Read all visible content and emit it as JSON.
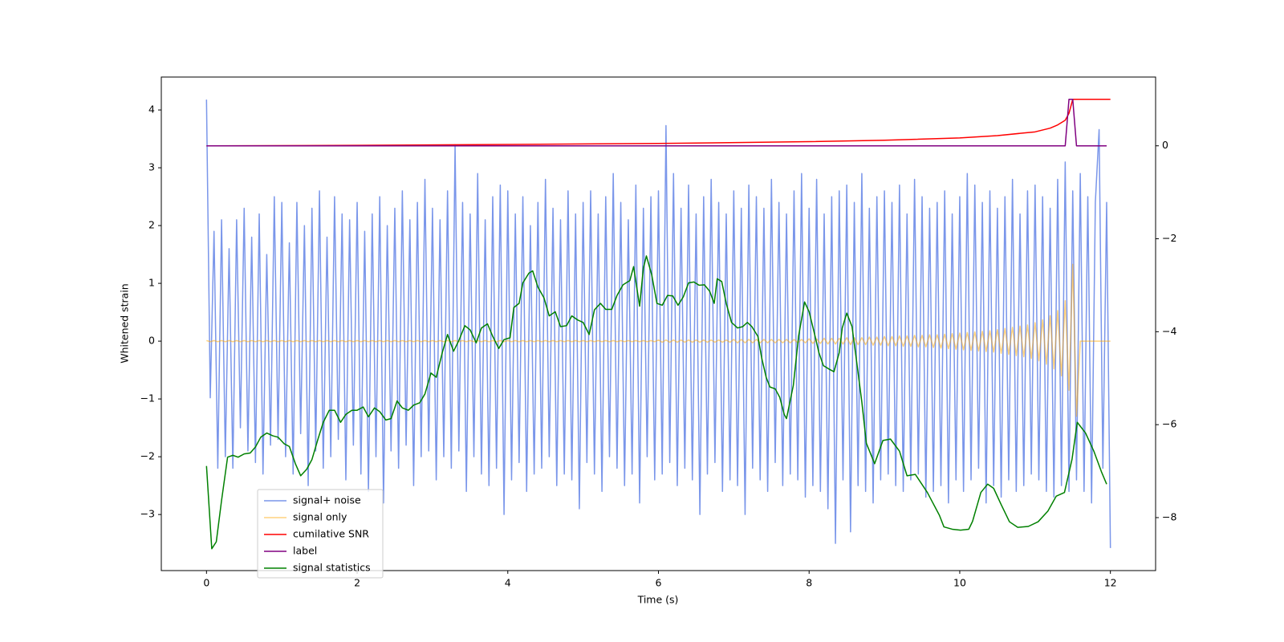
{
  "chart_data": {
    "type": "line",
    "xlabel": "Time (s)",
    "ylabel": "Whitened strain",
    "xlim": [
      -0.6,
      12.6
    ],
    "ylim": [
      -3.97,
      4.57
    ],
    "y2lim": [
      -9.14,
      1.48
    ],
    "xticks": [
      0,
      2,
      4,
      6,
      8,
      10,
      12
    ],
    "yticks": [
      {
        "value": -3,
        "label": "−3"
      },
      {
        "value": -2,
        "label": "−2"
      },
      {
        "value": -1,
        "label": "−1"
      },
      0,
      1,
      2,
      3,
      4
    ],
    "y2ticks": [
      {
        "value": -8,
        "label": "−8"
      },
      {
        "value": -6,
        "label": "−6"
      },
      {
        "value": -4,
        "label": "−4"
      },
      {
        "value": -2,
        "label": "−2"
      },
      0
    ],
    "x": [
      0,
      0.05,
      0.1,
      0.15,
      0.2,
      0.25,
      0.3,
      0.35,
      0.4,
      0.45,
      0.5,
      0.55,
      0.6,
      0.65,
      0.7,
      0.75,
      0.8,
      0.85,
      0.9,
      0.95,
      1,
      1.05,
      1.1,
      1.15,
      1.2,
      1.25,
      1.3,
      1.35,
      1.4,
      1.45,
      1.5,
      1.55,
      1.6,
      1.65,
      1.7,
      1.75,
      1.8,
      1.85,
      1.9,
      1.95,
      2,
      2.05,
      2.1,
      2.15,
      2.2,
      2.25,
      2.3,
      2.35,
      2.4,
      2.45,
      2.5,
      2.55,
      2.6,
      2.65,
      2.7,
      2.75,
      2.8,
      2.85,
      2.9,
      2.95,
      3,
      3.05,
      3.1,
      3.15,
      3.2,
      3.25,
      3.3,
      3.35,
      3.4,
      3.45,
      3.5,
      3.55,
      3.6,
      3.65,
      3.7,
      3.75,
      3.8,
      3.85,
      3.9,
      3.95,
      4,
      4.05,
      4.1,
      4.15,
      4.2,
      4.25,
      4.3,
      4.35,
      4.4,
      4.45,
      4.5,
      4.55,
      4.6,
      4.65,
      4.7,
      4.75,
      4.8,
      4.85,
      4.9,
      4.95,
      5,
      5.05,
      5.1,
      5.15,
      5.2,
      5.25,
      5.3,
      5.35,
      5.4,
      5.45,
      5.5,
      5.55,
      5.6,
      5.65,
      5.7,
      5.75,
      5.8,
      5.85,
      5.9,
      5.95,
      6,
      6.05,
      6.1,
      6.15,
      6.2,
      6.25,
      6.3,
      6.35,
      6.4,
      6.45,
      6.5,
      6.55,
      6.6,
      6.65,
      6.7,
      6.75,
      6.8,
      6.85,
      6.9,
      6.95,
      7,
      7.05,
      7.1,
      7.15,
      7.2,
      7.25,
      7.3,
      7.35,
      7.4,
      7.45,
      7.5,
      7.55,
      7.6,
      7.65,
      7.7,
      7.75,
      7.8,
      7.85,
      7.9,
      7.95,
      8,
      8.05,
      8.1,
      8.15,
      8.2,
      8.25,
      8.3,
      8.35,
      8.4,
      8.45,
      8.5,
      8.55,
      8.6,
      8.65,
      8.7,
      8.75,
      8.8,
      8.85,
      8.9,
      8.95,
      9,
      9.05,
      9.1,
      9.15,
      9.2,
      9.25,
      9.3,
      9.35,
      9.4,
      9.45,
      9.5,
      9.55,
      9.6,
      9.65,
      9.7,
      9.75,
      9.8,
      9.85,
      9.9,
      9.95,
      10,
      10.05,
      10.1,
      10.15,
      10.2,
      10.25,
      10.3,
      10.35,
      10.4,
      10.45,
      10.5,
      10.55,
      10.6,
      10.65,
      10.7,
      10.75,
      10.8,
      10.85,
      10.9,
      10.95,
      11,
      11.05,
      11.1,
      11.15,
      11.2,
      11.25,
      11.3,
      11.35,
      11.4,
      11.45,
      11.5,
      11.55,
      11.6,
      11.65,
      11.7,
      11.75,
      11.8,
      11.85,
      11.9,
      11.95,
      12
    ],
    "series": [
      {
        "name": "signal+ noise",
        "color": "royalblue",
        "alpha": 0.7,
        "values": [
          4.18,
          -0.98,
          1.9,
          -2.2,
          2.1,
          -2.0,
          1.6,
          -2.2,
          2.1,
          -1.5,
          2.3,
          -1.9,
          1.8,
          -2.1,
          2.2,
          -2.3,
          1.5,
          -1.8,
          2.5,
          -1.7,
          2.4,
          -2.0,
          1.7,
          -2.3,
          2.4,
          -1.6,
          2.0,
          -2.5,
          2.3,
          -1.9,
          2.6,
          -2.2,
          1.8,
          -2.0,
          2.5,
          -1.7,
          2.2,
          -2.4,
          2.1,
          -1.8,
          2.4,
          -2.3,
          1.9,
          -2.6,
          2.2,
          -2.0,
          2.5,
          -2.8,
          2.0,
          -1.9,
          2.3,
          -2.2,
          2.6,
          -1.8,
          2.1,
          -2.5,
          2.4,
          -2.0,
          2.8,
          -1.9,
          2.3,
          -2.4,
          2.1,
          -2.0,
          2.6,
          -2.2,
          3.4,
          -1.9,
          2.4,
          -2.6,
          2.2,
          -2.0,
          2.9,
          -2.3,
          2.1,
          -2.5,
          2.5,
          -2.2,
          2.7,
          -3.0,
          2.6,
          -2.4,
          2.2,
          -2.1,
          2.5,
          -2.6,
          2.0,
          -2.3,
          2.4,
          -2.2,
          2.8,
          -2.0,
          2.3,
          -2.5,
          2.1,
          -2.3,
          2.6,
          -2.4,
          2.2,
          -2.9,
          2.4,
          -2.1,
          2.6,
          -2.3,
          2.2,
          -2.6,
          2.5,
          -2.0,
          2.9,
          -2.2,
          2.4,
          -2.5,
          2.1,
          -2.3,
          2.7,
          -2.8,
          2.3,
          -2.0,
          2.5,
          -2.4,
          2.6,
          -2.3,
          3.73,
          -2.1,
          2.9,
          -2.5,
          2.3,
          -2.2,
          2.7,
          -2.4,
          2.2,
          -3.0,
          2.5,
          -2.3,
          2.8,
          -2.1,
          2.4,
          -2.6,
          2.2,
          -2.4,
          2.6,
          -2.5,
          2.3,
          -3.0,
          2.7,
          -2.2,
          2.5,
          -2.4,
          2.3,
          -2.6,
          2.8,
          -2.1,
          2.4,
          -2.5,
          2.2,
          -2.3,
          2.6,
          -2.4,
          2.9,
          -2.7,
          2.3,
          -2.5,
          2.8,
          -2.6,
          2.2,
          -2.9,
          2.5,
          -3.5,
          2.6,
          -2.4,
          2.7,
          -3.3,
          2.4,
          -2.5,
          2.9,
          -2.6,
          2.3,
          -2.8,
          2.5,
          -2.4,
          2.6,
          -2.3,
          2.4,
          -2.5,
          2.7,
          -2.6,
          2.2,
          -2.4,
          2.8,
          -2.3,
          2.5,
          -2.7,
          2.3,
          -2.6,
          2.4,
          -2.5,
          2.6,
          -2.8,
          2.2,
          -2.4,
          2.5,
          -2.6,
          2.9,
          -2.4,
          2.7,
          -2.2,
          2.4,
          -2.8,
          2.6,
          -2.5,
          2.3,
          -2.7,
          2.5,
          -2.4,
          2.8,
          -2.6,
          2.2,
          -2.5,
          2.6,
          -2.3,
          2.7,
          -2.4,
          2.5,
          -2.6,
          2.3,
          -2.7,
          2.8,
          -2.5,
          3.1,
          -2.6,
          2.6,
          -2.4,
          2.9,
          -2.6,
          2.5,
          -2.8,
          2.4,
          3.66,
          -2.2,
          2.4,
          -3.58
        ]
      },
      {
        "name": "signal only",
        "color": "orange",
        "alpha": 0.5,
        "values": [
          0.01,
          -0.01,
          0.01,
          -0.01,
          0.01,
          -0.01,
          0.01,
          -0.01,
          0.01,
          -0.01,
          0.01,
          -0.01,
          0.01,
          -0.01,
          0.01,
          -0.01,
          0.01,
          -0.01,
          0.01,
          -0.01,
          0.01,
          -0.01,
          0.01,
          -0.01,
          0.01,
          -0.01,
          0.01,
          -0.01,
          0.01,
          -0.01,
          0.01,
          -0.01,
          0.01,
          -0.01,
          0.01,
          -0.01,
          0.01,
          -0.01,
          0.01,
          -0.01,
          0.01,
          -0.01,
          0.01,
          -0.01,
          0.01,
          -0.01,
          0.01,
          -0.01,
          0.01,
          -0.01,
          0.01,
          -0.01,
          0.01,
          -0.01,
          0.01,
          -0.01,
          0.01,
          -0.01,
          0.01,
          -0.01,
          0.01,
          -0.01,
          0.01,
          -0.01,
          0.01,
          -0.01,
          0.01,
          -0.01,
          0.01,
          -0.01,
          0.01,
          -0.01,
          0.01,
          -0.01,
          0.01,
          -0.01,
          0.01,
          -0.01,
          0.01,
          -0.01,
          0.01,
          -0.01,
          0.01,
          -0.01,
          0.01,
          -0.01,
          0.01,
          -0.01,
          0.01,
          -0.01,
          0.01,
          -0.01,
          0.01,
          -0.01,
          0.01,
          -0.01,
          0.01,
          -0.01,
          0.01,
          -0.01,
          0.01,
          -0.01,
          0.01,
          -0.01,
          0.01,
          -0.01,
          0.01,
          -0.01,
          0.01,
          -0.01,
          0.01,
          -0.01,
          0.01,
          -0.01,
          0.01,
          -0.01,
          0.01,
          -0.01,
          0.01,
          -0.01,
          0.02,
          -0.02,
          0.02,
          -0.02,
          0.02,
          -0.02,
          0.02,
          -0.02,
          0.02,
          -0.02,
          0.02,
          -0.02,
          0.02,
          -0.02,
          0.02,
          -0.02,
          0.02,
          -0.02,
          0.02,
          -0.02,
          0.03,
          -0.03,
          0.03,
          -0.03,
          0.03,
          -0.03,
          0.03,
          -0.03,
          0.03,
          -0.03,
          0.03,
          -0.03,
          0.03,
          -0.03,
          0.03,
          -0.03,
          0.03,
          -0.03,
          0.03,
          -0.03,
          0.04,
          -0.04,
          0.04,
          -0.04,
          0.05,
          -0.05,
          0.05,
          -0.05,
          0.05,
          -0.05,
          0.06,
          -0.06,
          0.06,
          -0.06,
          0.06,
          -0.06,
          0.07,
          -0.07,
          0.07,
          -0.07,
          0.08,
          -0.08,
          0.08,
          -0.08,
          0.09,
          -0.09,
          0.09,
          -0.09,
          0.1,
          -0.1,
          0.1,
          -0.1,
          0.11,
          -0.11,
          0.11,
          -0.12,
          0.12,
          -0.13,
          0.13,
          -0.14,
          0.14,
          -0.15,
          0.15,
          -0.16,
          0.16,
          -0.17,
          0.17,
          -0.18,
          0.18,
          -0.19,
          0.2,
          -0.21,
          0.22,
          -0.23,
          0.24,
          -0.25,
          0.26,
          -0.27,
          0.28,
          -0.3,
          0.32,
          -0.34,
          0.37,
          -0.4,
          0.44,
          -0.48,
          0.53,
          -0.6,
          0.7,
          -0.85,
          1.33,
          -1.3,
          0,
          0,
          0,
          0,
          0,
          0,
          0,
          0,
          0
        ]
      },
      {
        "name": "cumilative SNR",
        "color": "red",
        "axis": "y2",
        "x": [
          0,
          2,
          4,
          6,
          8,
          9,
          10,
          10.5,
          11,
          11.2,
          11.3,
          11.4,
          11.45,
          11.5,
          12
        ],
        "values": [
          0,
          0.01,
          0.03,
          0.05,
          0.09,
          0.12,
          0.17,
          0.22,
          0.3,
          0.38,
          0.45,
          0.55,
          0.7,
          1,
          1
        ]
      },
      {
        "name": "label",
        "color": "purple",
        "axis": "y2",
        "x": [
          0,
          11.4,
          11.45,
          11.5,
          11.55,
          11.95
        ],
        "values": [
          0,
          0,
          1,
          1,
          0,
          0
        ]
      },
      {
        "name": "signal statistics",
        "color": "green",
        "axis": "y2",
        "x": [
          0,
          0.07,
          0.13,
          0.2,
          0.28,
          0.35,
          0.42,
          0.5,
          0.58,
          0.65,
          0.72,
          0.8,
          0.88,
          0.95,
          1.03,
          1.1,
          1.18,
          1.25,
          1.33,
          1.4,
          1.48,
          1.55,
          1.63,
          1.7,
          1.78,
          1.85,
          1.93,
          2,
          2.08,
          2.15,
          2.23,
          2.3,
          2.38,
          2.45,
          2.53,
          2.6,
          2.68,
          2.75,
          2.83,
          2.9,
          2.98,
          3.05,
          3.13,
          3.2,
          3.28,
          3.35,
          3.43,
          3.5,
          3.58,
          3.65,
          3.73,
          3.8,
          3.88,
          3.95,
          4.03,
          4.08,
          4.15,
          4.2,
          4.28,
          4.33,
          4.4,
          4.48,
          4.55,
          4.63,
          4.7,
          4.78,
          4.85,
          4.93,
          5,
          5.08,
          5.15,
          5.23,
          5.3,
          5.38,
          5.45,
          5.53,
          5.62,
          5.67,
          5.75,
          5.8,
          5.84,
          5.91,
          5.98,
          6.05,
          6.12,
          6.19,
          6.26,
          6.33,
          6.4,
          6.47,
          6.54,
          6.61,
          6.68,
          6.74,
          6.78,
          6.84,
          6.9,
          6.97,
          7.05,
          7.12,
          7.18,
          7.24,
          7.32,
          7.37,
          7.43,
          7.48,
          7.55,
          7.61,
          7.67,
          7.7,
          7.79,
          7.86,
          7.94,
          8,
          8.08,
          8.13,
          8.19,
          8.26,
          8.33,
          8.4,
          8.44,
          8.5,
          8.57,
          8.63,
          8.7,
          8.76,
          8.87,
          8.98,
          9.08,
          9.2,
          9.3,
          9.41,
          9.57,
          9.73,
          9.79,
          9.9,
          10.01,
          10.12,
          10.17,
          10.28,
          10.37,
          10.45,
          10.55,
          10.66,
          10.77,
          10.91,
          11.04,
          11.17,
          11.28,
          11.39,
          11.49,
          11.56,
          11.67,
          11.78,
          11.88,
          11.95
        ],
        "values": [
          -6.89,
          -8.67,
          -8.52,
          -7.63,
          -6.7,
          -6.66,
          -6.7,
          -6.63,
          -6.61,
          -6.48,
          -6.27,
          -6.18,
          -6.24,
          -6.27,
          -6.41,
          -6.47,
          -6.84,
          -7.1,
          -6.96,
          -6.75,
          -6.31,
          -5.95,
          -5.69,
          -5.69,
          -5.95,
          -5.78,
          -5.69,
          -5.69,
          -5.62,
          -5.83,
          -5.64,
          -5.72,
          -5.9,
          -5.87,
          -5.49,
          -5.64,
          -5.69,
          -5.58,
          -5.53,
          -5.34,
          -4.89,
          -4.98,
          -4.45,
          -4.06,
          -4.42,
          -4.19,
          -3.87,
          -3.96,
          -4.24,
          -3.92,
          -3.83,
          -4.1,
          -4.36,
          -4.17,
          -4.13,
          -3.48,
          -3.39,
          -2.95,
          -2.74,
          -2.69,
          -3.04,
          -3.27,
          -3.66,
          -3.57,
          -3.89,
          -3.87,
          -3.66,
          -3.75,
          -3.8,
          -4.06,
          -3.53,
          -3.39,
          -3.52,
          -3.52,
          -3.22,
          -2.99,
          -2.9,
          -2.6,
          -3.45,
          -2.63,
          -2.37,
          -2.77,
          -3.39,
          -3.43,
          -3.22,
          -3.23,
          -3.43,
          -3.25,
          -2.95,
          -2.93,
          -3.0,
          -2.99,
          -3.13,
          -3.39,
          -2.86,
          -2.92,
          -3.39,
          -3.8,
          -3.92,
          -3.89,
          -3.8,
          -3.89,
          -4.1,
          -4.56,
          -4.98,
          -5.19,
          -5.23,
          -5.41,
          -5.78,
          -5.87,
          -5.16,
          -4.1,
          -3.36,
          -3.57,
          -4.1,
          -4.45,
          -4.73,
          -4.8,
          -4.86,
          -4.45,
          -3.92,
          -3.6,
          -3.89,
          -4.63,
          -5.51,
          -6.4,
          -6.84,
          -6.34,
          -6.31,
          -6.57,
          -7.1,
          -7.07,
          -7.46,
          -7.95,
          -8.2,
          -8.25,
          -8.27,
          -8.25,
          -8.08,
          -7.46,
          -7.28,
          -7.37,
          -7.72,
          -8.09,
          -8.21,
          -8.19,
          -8.09,
          -7.86,
          -7.54,
          -7.46,
          -6.75,
          -5.95,
          -6.18,
          -6.57,
          -7.01,
          -7.28
        ]
      }
    ]
  }
}
